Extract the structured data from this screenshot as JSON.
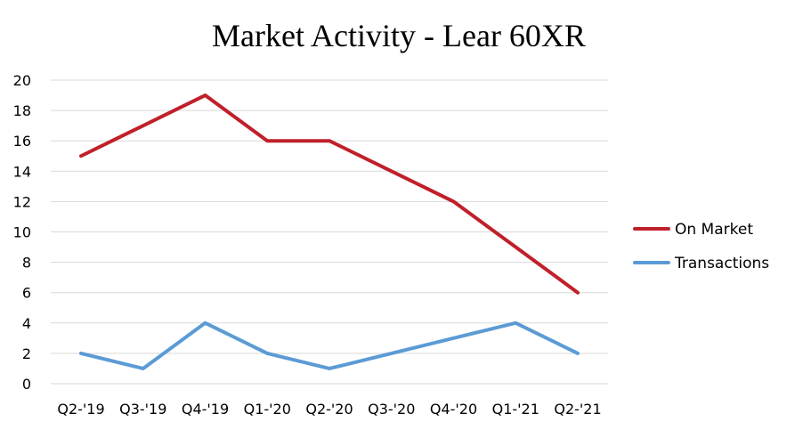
{
  "chart_data": {
    "type": "line",
    "title": "Market Activity - Lear 60XR",
    "xlabel": "",
    "ylabel": "",
    "categories": [
      "Q2-'19",
      "Q3-'19",
      "Q4-'19",
      "Q1-'20",
      "Q2-'20",
      "Q3-'20",
      "Q4-'20",
      "Q1-'21",
      "Q2-'21"
    ],
    "ylim": [
      0,
      20
    ],
    "yticks": [
      0,
      2,
      4,
      6,
      8,
      10,
      12,
      14,
      16,
      18,
      20
    ],
    "grid": true,
    "legend_position": "right",
    "series": [
      {
        "name": "On Market",
        "color": "#c0202a",
        "values": [
          15,
          17,
          19,
          16,
          16,
          14,
          12,
          9,
          6
        ]
      },
      {
        "name": "Transactions",
        "color": "#5b9bd5",
        "values": [
          2,
          1,
          4,
          2,
          1,
          2,
          3,
          4,
          2
        ]
      }
    ]
  }
}
